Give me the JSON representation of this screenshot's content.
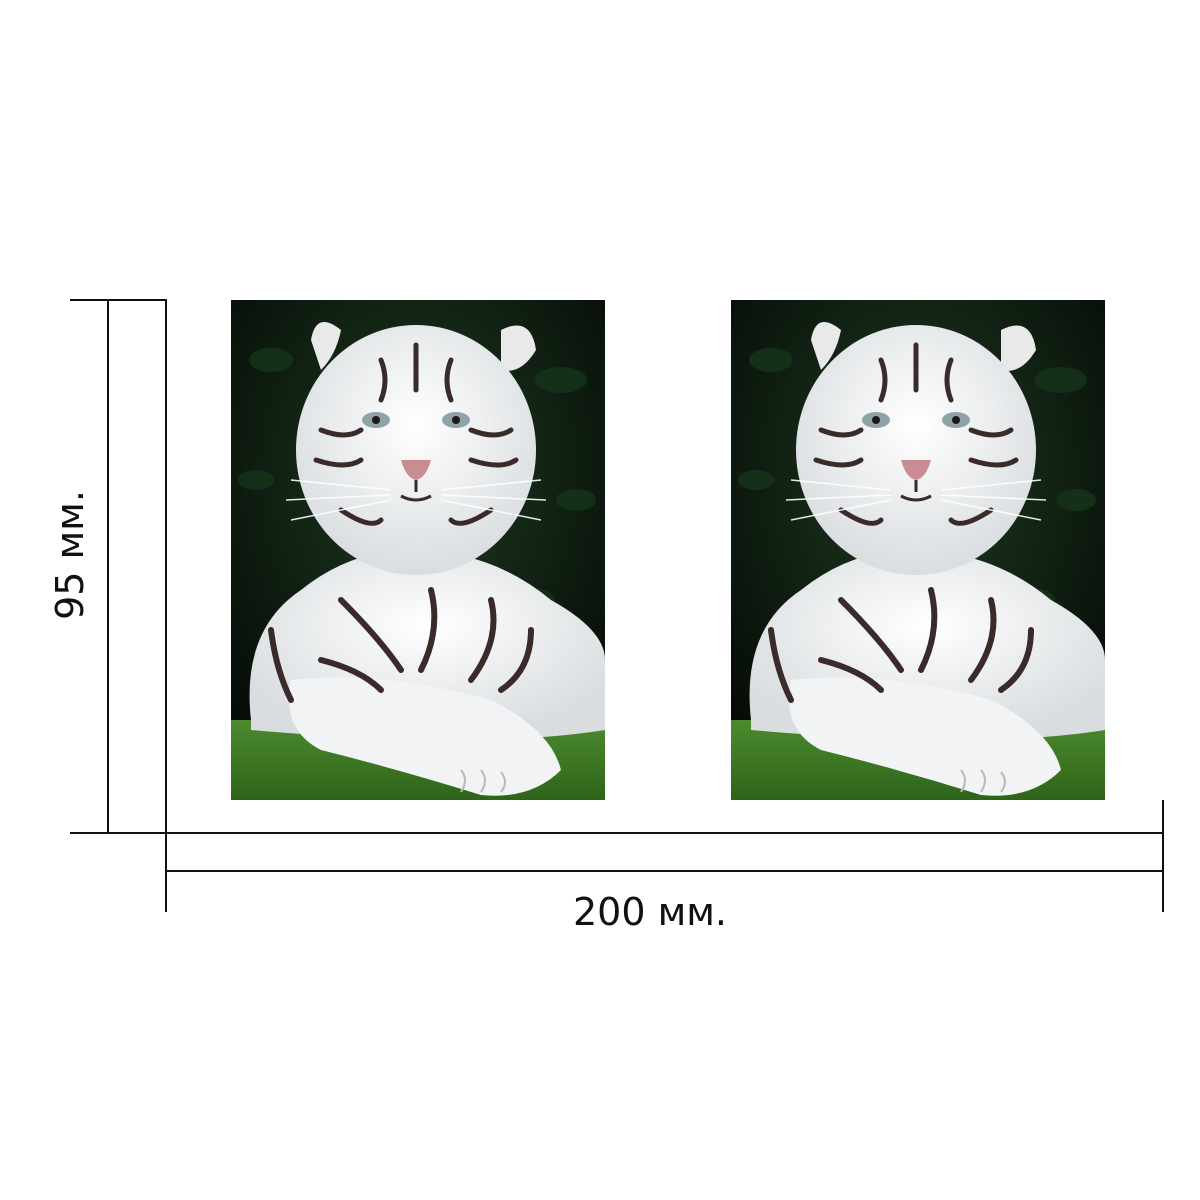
{
  "dimensions": {
    "height_label": "95 мм.",
    "width_label": "200 мм."
  },
  "photos": [
    {
      "subject": "white-tiger",
      "position": "left"
    },
    {
      "subject": "white-tiger",
      "position": "right"
    }
  ],
  "colors": {
    "line": "#111111",
    "background": "#ffffff",
    "foliage": "#0c1a10",
    "grass": "#3f7d28"
  }
}
